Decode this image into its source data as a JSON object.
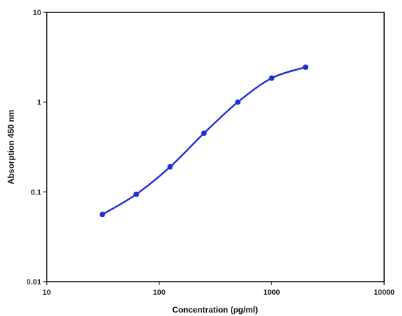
{
  "chart_data": {
    "type": "scatter",
    "title": "",
    "xlabel": "Concentration (pg/ml)",
    "ylabel": "Absorption 450 nm",
    "x_scale": "log",
    "y_scale": "log",
    "xlim": [
      10,
      10000
    ],
    "ylim": [
      0.01,
      10
    ],
    "x_ticks": [
      "10",
      "100",
      "1000",
      "10000"
    ],
    "y_ticks": [
      "0.01",
      "0.1",
      "1",
      "10"
    ],
    "grid": false,
    "legend": "none",
    "series": [
      {
        "x": [
          31.25,
          62.5,
          125,
          250,
          500,
          1000,
          2000
        ],
        "y": [
          0.056,
          0.094,
          0.19,
          0.45,
          1.0,
          1.85,
          2.45
        ],
        "color": "#1f2fd6",
        "fit_curve": true
      }
    ]
  }
}
